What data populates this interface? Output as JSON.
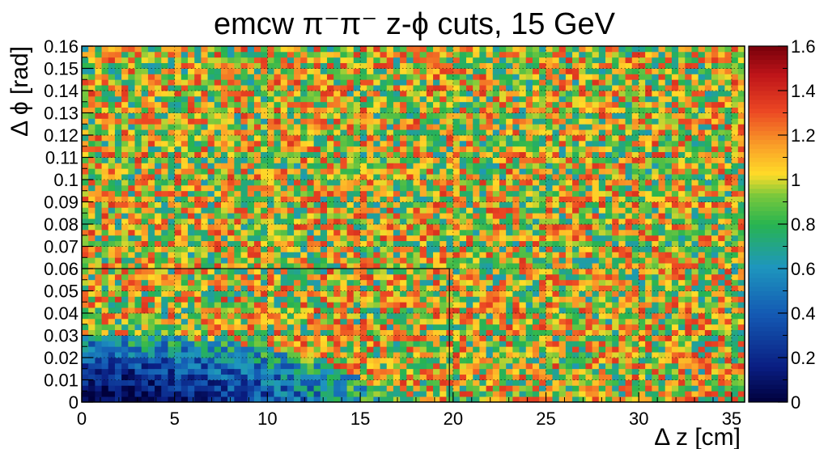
{
  "chart_data": {
    "type": "heatmap",
    "title": "emcw π⁻π⁻  z-ϕ cuts, 15 GeV",
    "xlabel": "Δ z [cm]",
    "ylabel": "Δ ϕ [rad]",
    "xlim": [
      0,
      35.7
    ],
    "ylim": [
      0,
      0.16
    ],
    "zlim": [
      0,
      1.6
    ],
    "x_ticks": [
      "0",
      "5",
      "10",
      "15",
      "20",
      "25",
      "30",
      "35"
    ],
    "y_ticks": [
      "0",
      "0.01",
      "0.02",
      "0.03",
      "0.04",
      "0.05",
      "0.06",
      "0.07",
      "0.08",
      "0.09",
      "0.1",
      "0.11",
      "0.12",
      "0.13",
      "0.14",
      "0.15",
      "0.16"
    ],
    "z_ticks": [
      "0",
      "0.2",
      "0.4",
      "0.6",
      "0.8",
      "1",
      "1.2",
      "1.4",
      "1.6"
    ],
    "bins_x": 100,
    "bins_y": 64,
    "grid": true,
    "colormap": "rainbow (dark blue → cyan → green → yellow → orange → red → dark red)",
    "description_of_values": {
      "background_level": 1.0,
      "suppressed_region_min": 0.05,
      "note": "values near 0.05–0.3 for Δz below about 6 cm and Δϕ below about 0.015 rad, rising to 0.5–0.7 out to Δz ≈ 15 cm and Δϕ ≈ 0.03 rad; elsewhere fluctuating around 1.0 (range about 0.7–1.5)"
    },
    "cut_contour": {
      "points": [
        [
          0,
          0.06
        ],
        [
          19.8,
          0.06
        ],
        [
          19.8,
          0.0
        ]
      ]
    }
  }
}
